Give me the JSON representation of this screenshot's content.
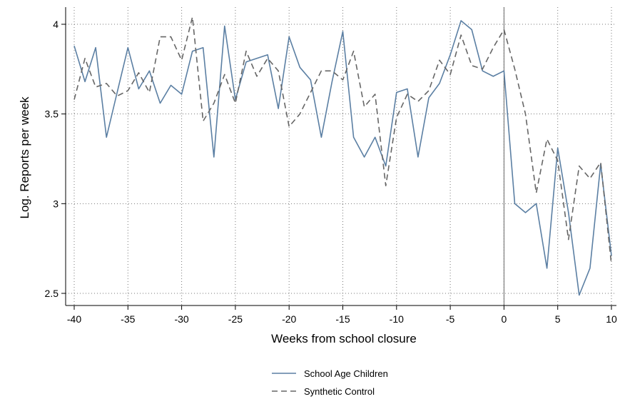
{
  "chart_data": {
    "type": "line",
    "xlabel": "Weeks from school closure",
    "ylabel": "Log. Reports per week",
    "xlim": [
      -40,
      10
    ],
    "ylim": [
      2.45,
      4.1
    ],
    "xticks": [
      "-40",
      "-35",
      "-30",
      "-25",
      "-20",
      "-15",
      "-10",
      "-5",
      "0",
      "5",
      "10"
    ],
    "yticks": [
      "2.5",
      "3",
      "3.5",
      "4"
    ],
    "grid": true,
    "grid_style": "dotted",
    "vline_x": 0,
    "legend_position": "bottom-center",
    "x": [
      -40,
      -39,
      -38,
      -37,
      -36,
      -35,
      -34,
      -33,
      -32,
      -31,
      -30,
      -29,
      -28,
      -27,
      -26,
      -25,
      -24,
      -23,
      -22,
      -21,
      -20,
      -19,
      -18,
      -17,
      -16,
      -15,
      -14,
      -13,
      -12,
      -11,
      -10,
      -9,
      -8,
      -7,
      -6,
      -5,
      -4,
      -3,
      -2,
      -1,
      0,
      1,
      2,
      3,
      4,
      5,
      6,
      7,
      8,
      9,
      10
    ],
    "series": [
      {
        "name": "School Age Children",
        "color": "#5b7fa3",
        "style": "solid",
        "values": [
          3.88,
          3.68,
          3.87,
          3.37,
          3.62,
          3.87,
          3.64,
          3.74,
          3.56,
          3.66,
          3.61,
          3.85,
          3.87,
          3.26,
          3.99,
          3.58,
          3.79,
          3.81,
          3.83,
          3.53,
          3.93,
          3.76,
          3.69,
          3.37,
          3.68,
          3.96,
          3.37,
          3.26,
          3.37,
          3.21,
          3.62,
          3.64,
          3.26,
          3.59,
          3.67,
          3.83,
          4.02,
          3.97,
          3.74,
          3.71,
          3.74,
          3.0,
          2.95,
          3.0,
          2.64,
          3.31,
          2.95,
          2.49,
          2.64,
          3.22,
          2.71
        ]
      },
      {
        "name": "Synthetic Control",
        "color": "#666666",
        "style": "dashed",
        "values": [
          3.58,
          3.81,
          3.65,
          3.67,
          3.6,
          3.63,
          3.73,
          3.62,
          3.93,
          3.93,
          3.8,
          4.04,
          3.46,
          3.56,
          3.72,
          3.56,
          3.85,
          3.71,
          3.81,
          3.74,
          3.43,
          3.5,
          3.62,
          3.74,
          3.74,
          3.69,
          3.85,
          3.54,
          3.61,
          3.1,
          3.48,
          3.61,
          3.57,
          3.63,
          3.8,
          3.72,
          3.94,
          3.77,
          3.75,
          3.87,
          3.97,
          3.75,
          3.5,
          3.06,
          3.36,
          3.24,
          2.8,
          3.21,
          3.14,
          3.23,
          2.66
        ]
      }
    ]
  }
}
